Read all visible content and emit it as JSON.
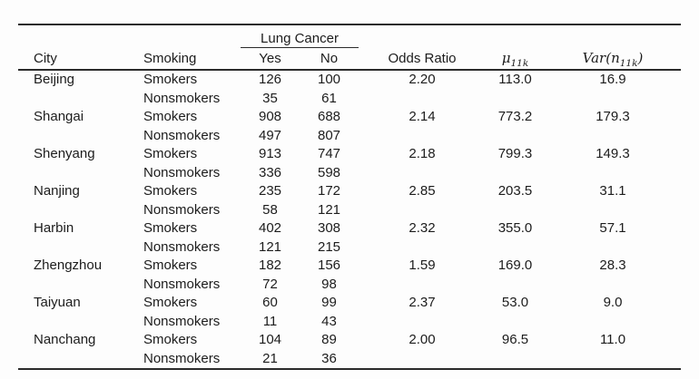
{
  "page": {
    "background": "#fdfdfd",
    "text_color": "#1c1c1c",
    "rule_color": "#2b2b2b"
  },
  "table": {
    "spanner_label": "Lung Cancer",
    "headers": {
      "city": "City",
      "smoking": "Smoking",
      "yes": "Yes",
      "no": "No",
      "odds_ratio": "Odds Ratio",
      "mu_symbol": "μ",
      "mu_sub": "11k",
      "var_prefix": "Var(n",
      "var_sub": "11k",
      "var_suffix": ")"
    },
    "rows": [
      {
        "city": "Beijing",
        "smoking": "Smokers",
        "yes": "126",
        "no": "100",
        "odds_ratio": "2.20",
        "mu": "113.0",
        "var": "16.9"
      },
      {
        "city": "",
        "smoking": "Nonsmokers",
        "yes": "35",
        "no": "61",
        "odds_ratio": "",
        "mu": "",
        "var": ""
      },
      {
        "city": "Shangai",
        "smoking": "Smokers",
        "yes": "908",
        "no": "688",
        "odds_ratio": "2.14",
        "mu": "773.2",
        "var": "179.3"
      },
      {
        "city": "",
        "smoking": "Nonsmokers",
        "yes": "497",
        "no": "807",
        "odds_ratio": "",
        "mu": "",
        "var": ""
      },
      {
        "city": "Shenyang",
        "smoking": "Smokers",
        "yes": "913",
        "no": "747",
        "odds_ratio": "2.18",
        "mu": "799.3",
        "var": "149.3"
      },
      {
        "city": "",
        "smoking": "Nonsmokers",
        "yes": "336",
        "no": "598",
        "odds_ratio": "",
        "mu": "",
        "var": ""
      },
      {
        "city": "Nanjing",
        "smoking": "Smokers",
        "yes": "235",
        "no": "172",
        "odds_ratio": "2.85",
        "mu": "203.5",
        "var": "31.1"
      },
      {
        "city": "",
        "smoking": "Nonsmokers",
        "yes": "58",
        "no": "121",
        "odds_ratio": "",
        "mu": "",
        "var": ""
      },
      {
        "city": "Harbin",
        "smoking": "Smokers",
        "yes": "402",
        "no": "308",
        "odds_ratio": "2.32",
        "mu": "355.0",
        "var": "57.1"
      },
      {
        "city": "",
        "smoking": "Nonsmokers",
        "yes": "121",
        "no": "215",
        "odds_ratio": "",
        "mu": "",
        "var": ""
      },
      {
        "city": "Zhengzhou",
        "smoking": "Smokers",
        "yes": "182",
        "no": "156",
        "odds_ratio": "1.59",
        "mu": "169.0",
        "var": "28.3"
      },
      {
        "city": "",
        "smoking": "Nonsmokers",
        "yes": "72",
        "no": "98",
        "odds_ratio": "",
        "mu": "",
        "var": ""
      },
      {
        "city": "Taiyuan",
        "smoking": "Smokers",
        "yes": "60",
        "no": "99",
        "odds_ratio": "2.37",
        "mu": "53.0",
        "var": "9.0"
      },
      {
        "city": "",
        "smoking": "Nonsmokers",
        "yes": "11",
        "no": "43",
        "odds_ratio": "",
        "mu": "",
        "var": ""
      },
      {
        "city": "Nanchang",
        "smoking": "Smokers",
        "yes": "104",
        "no": "89",
        "odds_ratio": "2.00",
        "mu": "96.5",
        "var": "11.0"
      },
      {
        "city": "",
        "smoking": "Nonsmokers",
        "yes": "21",
        "no": "36",
        "odds_ratio": "",
        "mu": "",
        "var": ""
      }
    ]
  }
}
